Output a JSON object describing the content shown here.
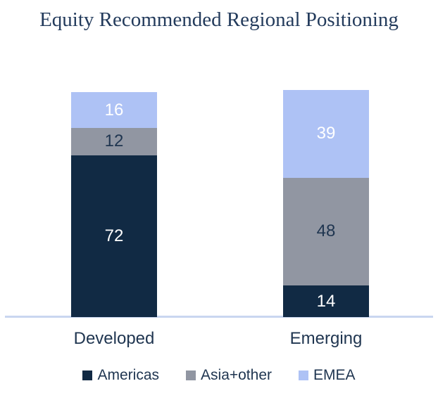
{
  "chart_data": {
    "type": "bar",
    "stacked": true,
    "title": "Equity Recommended Regional Positioning",
    "categories": [
      "Developed",
      "Emerging"
    ],
    "series": [
      {
        "name": "Americas",
        "color": "#112A44",
        "label_color": "#FFFFFF",
        "values": [
          72,
          14
        ]
      },
      {
        "name": "Asia+other",
        "color": "#9196A2",
        "label_color": "#1F3550",
        "values": [
          12,
          48
        ]
      },
      {
        "name": "EMEA",
        "color": "#AEC2F5",
        "label_color": "#FFFFFF",
        "values": [
          16,
          39
        ]
      }
    ],
    "totals": [
      100,
      101
    ],
    "ylim": [
      0,
      101
    ],
    "grid": false,
    "y_axis_visible": false,
    "data_labels": true,
    "legend_position": "bottom"
  },
  "colors": {
    "background": "#FFFFFF",
    "title_text": "#233B5C",
    "category_text": "#1F3550",
    "legend_text": "#1F3550",
    "axis_line": "#C9D6F0"
  }
}
